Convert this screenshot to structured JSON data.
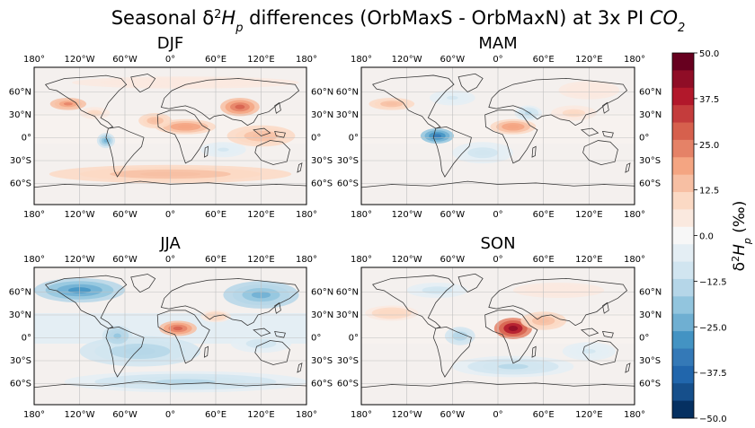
{
  "figure": {
    "title_prefix": "Seasonal δ",
    "title_sup": "2",
    "title_H": "H",
    "title_sub": "p",
    "title_mid": " differences (OrbMaxS - OrbMaxN) at 3x PI ",
    "title_co": "CO",
    "title_co_sub": "2"
  },
  "panels": [
    {
      "label": "DJF"
    },
    {
      "label": "MAM"
    },
    {
      "label": "JJA"
    },
    {
      "label": "SON"
    }
  ],
  "lon_ticks": [
    "180°",
    "120°W",
    "60°W",
    "0°",
    "60°E",
    "120°E",
    "180°"
  ],
  "lat_ticks": [
    "60°N",
    "30°N",
    "0°",
    "30°S",
    "60°S"
  ],
  "colorbar": {
    "ticks": [
      "50.0",
      "37.5",
      "25.0",
      "12.5",
      "0.0",
      "−12.5",
      "−25.0",
      "−37.5",
      "−50.0"
    ],
    "label_prefix": "δ",
    "label_sup": "2",
    "label_H": "H",
    "label_sub": "p",
    "label_units": " (‰)",
    "colors_top_to_bottom": [
      "#67001f",
      "#8f0d26",
      "#b2182b",
      "#c43c3c",
      "#d6604d",
      "#e58267",
      "#f4a582",
      "#f7bfa3",
      "#fbd9c4",
      "#fae9df",
      "#f7f7f7",
      "#e4eef4",
      "#d1e5f0",
      "#b5d6e8",
      "#92c5de",
      "#6fafd2",
      "#4393c3",
      "#3479b7",
      "#2166ac",
      "#164f8b",
      "#053061"
    ]
  }
}
